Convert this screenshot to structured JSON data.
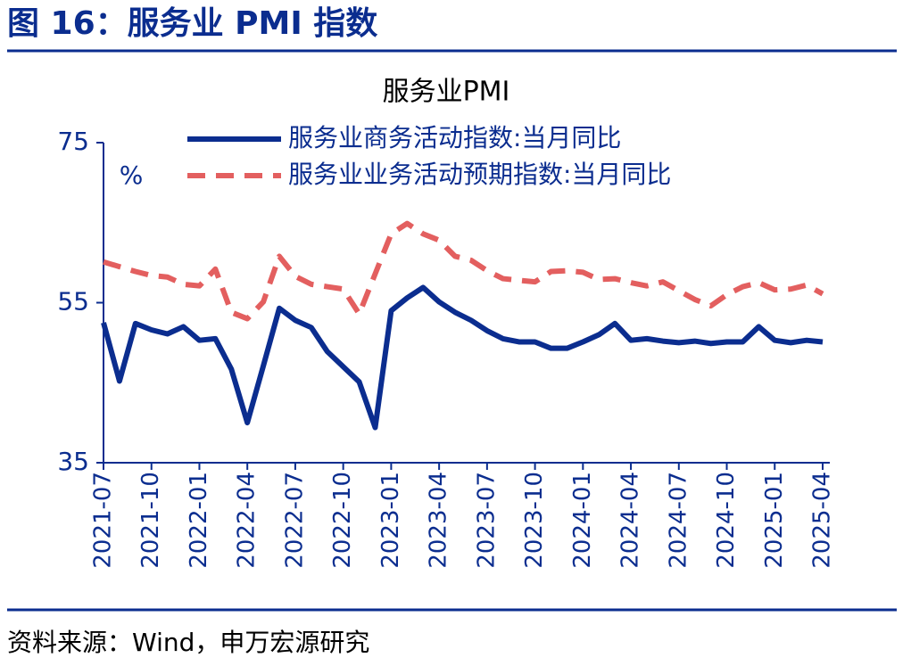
{
  "header_title": "图 16：服务业 PMI 指数",
  "source": "资料来源：Wind，申万宏源研究",
  "chart_data": {
    "type": "line",
    "title": "服务业PMI",
    "y_label": "%",
    "categories": [
      "2021-07",
      null,
      null,
      "2021-10",
      null,
      null,
      "2022-01",
      null,
      null,
      "2022-04",
      null,
      null,
      "2022-07",
      null,
      null,
      "2022-10",
      null,
      null,
      "2023-01",
      null,
      null,
      "2023-04",
      null,
      null,
      "2023-07",
      null,
      null,
      "2023-10",
      null,
      null,
      "2024-01",
      null,
      null,
      "2024-04",
      null,
      null,
      "2024-07",
      null,
      null,
      "2024-10",
      null,
      null,
      "2025-01",
      null,
      null,
      "2025-04"
    ],
    "series": [
      {
        "name": "服务业商务活动指数:当月同比",
        "color": "#0b2d8f",
        "dash": false,
        "values": [
          52.5,
          45.2,
          52.4,
          51.6,
          51.1,
          52.0,
          50.3,
          50.5,
          46.7,
          40.0,
          47.1,
          54.3,
          52.8,
          51.9,
          48.9,
          47.0,
          45.1,
          39.4,
          54.0,
          55.6,
          56.9,
          55.1,
          53.8,
          52.8,
          51.5,
          50.5,
          50.1,
          50.1,
          49.3,
          49.3,
          50.1,
          51.0,
          52.4,
          50.3,
          50.5,
          50.2,
          50.0,
          50.2,
          49.9,
          50.1,
          50.1,
          52.0,
          50.3,
          50.0,
          50.3,
          50.1
        ]
      },
      {
        "name": "服务业业务活动预期指数:当月同比",
        "color": "#e35f5f",
        "dash": true,
        "values": [
          60.1,
          59.5,
          58.9,
          58.4,
          58.2,
          57.3,
          57.1,
          59.2,
          53.8,
          53.0,
          55.1,
          60.8,
          58.3,
          57.3,
          57.0,
          56.7,
          53.6,
          58.6,
          63.6,
          64.9,
          63.6,
          62.8,
          60.8,
          60.3,
          59.0,
          58.0,
          57.8,
          57.6,
          58.9,
          59.0,
          58.8,
          57.9,
          58.0,
          57.5,
          57.1,
          57.6,
          56.5,
          55.4,
          54.6,
          56.0,
          57.0,
          57.5,
          56.6,
          56.7,
          57.2,
          56.1
        ]
      }
    ],
    "ylim": [
      35,
      75
    ],
    "yticks": [
      35,
      55,
      75
    ],
    "grid": false
  }
}
